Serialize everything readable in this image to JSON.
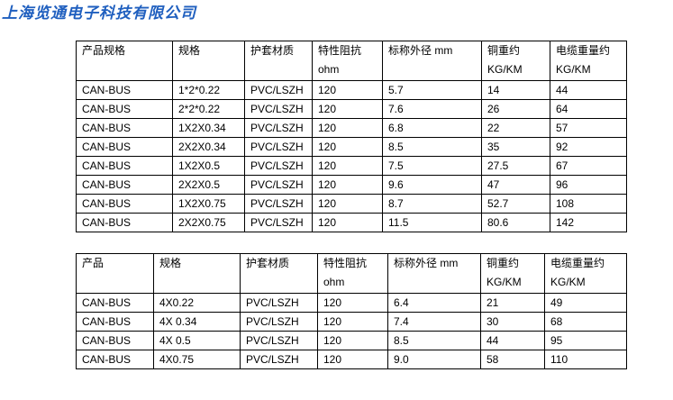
{
  "company_name": "上海览通电子科技有限公司",
  "table1": {
    "headers": [
      "产品规格",
      "规格",
      "护套材质",
      "特性阻抗 ohm",
      "标称外径 mm",
      "铜重约 KG/KM",
      "电缆重量约 KG/KM"
    ],
    "rows": [
      [
        "CAN-BUS",
        "1*2*0.22",
        "PVC/LSZH",
        "120",
        "5.7",
        "14",
        "44"
      ],
      [
        "CAN-BUS",
        "2*2*0.22",
        "PVC/LSZH",
        "120",
        "7.6",
        "26",
        "64"
      ],
      [
        "CAN-BUS",
        "1X2X0.34",
        "PVC/LSZH",
        "120",
        "6.8",
        "22",
        "57"
      ],
      [
        "CAN-BUS",
        "2X2X0.34",
        "PVC/LSZH",
        "120",
        "8.5",
        "35",
        "92"
      ],
      [
        "CAN-BUS",
        "1X2X0.5",
        "PVC/LSZH",
        "120",
        "7.5",
        "27.5",
        "67"
      ],
      [
        "CAN-BUS",
        "2X2X0.5",
        "PVC/LSZH",
        "120",
        "9.6",
        "47",
        "96"
      ],
      [
        "CAN-BUS",
        "1X2X0.75",
        "PVC/LSZH",
        "120",
        "8.7",
        "52.7",
        "108"
      ],
      [
        "CAN-BUS",
        "2X2X0.75",
        "PVC/LSZH",
        "120",
        "11.5",
        "80.6",
        "142"
      ]
    ]
  },
  "table2": {
    "headers": [
      "产品",
      "规格",
      "护套材质",
      "特性阻抗 ohm",
      "标称外径 mm",
      "铜重约 KG/KM",
      "电缆重量约 KG/KM"
    ],
    "rows": [
      [
        "CAN-BUS",
        "4X0.22",
        "PVC/LSZH",
        "120",
        "6.4",
        "21",
        "49"
      ],
      [
        "CAN-BUS",
        "4X 0.34",
        "PVC/LSZH",
        "120",
        "7.4",
        "30",
        "68"
      ],
      [
        "CAN-BUS",
        "4X 0.5",
        "PVC/LSZH",
        "120",
        "8.5",
        "44",
        "95"
      ],
      [
        "CAN-BUS",
        "4X0.75",
        "PVC/LSZH",
        "120",
        "9.0",
        "58",
        "110"
      ]
    ]
  }
}
